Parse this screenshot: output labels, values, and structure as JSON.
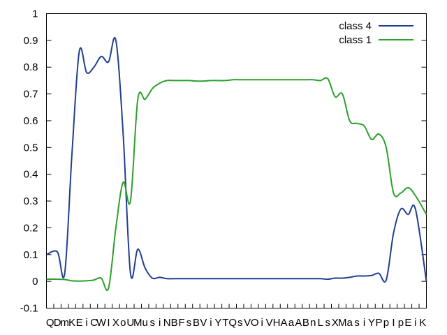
{
  "chart_data": {
    "type": "line",
    "title": "",
    "xlabel": "",
    "ylabel": "",
    "categories": [
      "Q",
      "D",
      "m",
      "K",
      "E",
      "i",
      "C",
      "W",
      "I",
      "X",
      "o",
      "U",
      "M",
      "u",
      "s",
      "i",
      "N",
      "B",
      "F",
      "s",
      "B",
      "V",
      "i",
      "Y",
      "T",
      "Q",
      "s",
      "V",
      "O",
      "i",
      "V",
      "H",
      "A",
      "a",
      "A",
      "B",
      "n",
      "L",
      "s",
      "X",
      "M",
      "a",
      "s",
      "i",
      "Y",
      "P",
      "p",
      "I",
      "p",
      "E",
      "i",
      "K"
    ],
    "ylim": [
      -0.1,
      1.0
    ],
    "yticks": [
      "-0.1",
      "0",
      "0.1",
      "0.2",
      "0.3",
      "0.4",
      "0.5",
      "0.6",
      "0.7",
      "0.8",
      "0.9",
      "1"
    ],
    "grid": false,
    "legend_position": "top-right",
    "series": [
      {
        "name": "class 4",
        "color": "#1f3f91",
        "values": [
          0.1,
          0.11,
          0.03,
          0.48,
          0.86,
          0.78,
          0.8,
          0.84,
          0.82,
          0.9,
          0.55,
          0.03,
          0.12,
          0.05,
          0.012,
          0.015,
          0.01,
          0.01,
          0.01,
          0.01,
          0.01,
          0.01,
          0.01,
          0.01,
          0.01,
          0.01,
          0.01,
          0.01,
          0.01,
          0.01,
          0.01,
          0.01,
          0.01,
          0.01,
          0.01,
          0.01,
          0.01,
          0.01,
          0.008,
          0.012,
          0.012,
          0.015,
          0.02,
          0.02,
          0.022,
          0.03,
          0.005,
          0.18,
          0.27,
          0.25,
          0.27,
          0.0
        ]
      },
      {
        "name": "class 1",
        "color": "#2ca02c",
        "values": [
          0.008,
          0.008,
          0.007,
          0.002,
          0.001,
          0.002,
          0.005,
          0.012,
          -0.025,
          0.2,
          0.37,
          0.3,
          0.68,
          0.68,
          0.72,
          0.74,
          0.75,
          0.75,
          0.75,
          0.75,
          0.748,
          0.748,
          0.75,
          0.75,
          0.75,
          0.753,
          0.753,
          0.753,
          0.753,
          0.753,
          0.753,
          0.753,
          0.753,
          0.753,
          0.753,
          0.753,
          0.753,
          0.75,
          0.757,
          0.69,
          0.7,
          0.6,
          0.59,
          0.58,
          0.53,
          0.55,
          0.5,
          0.33,
          0.33,
          0.35,
          0.32,
          0.25
        ]
      }
    ]
  }
}
